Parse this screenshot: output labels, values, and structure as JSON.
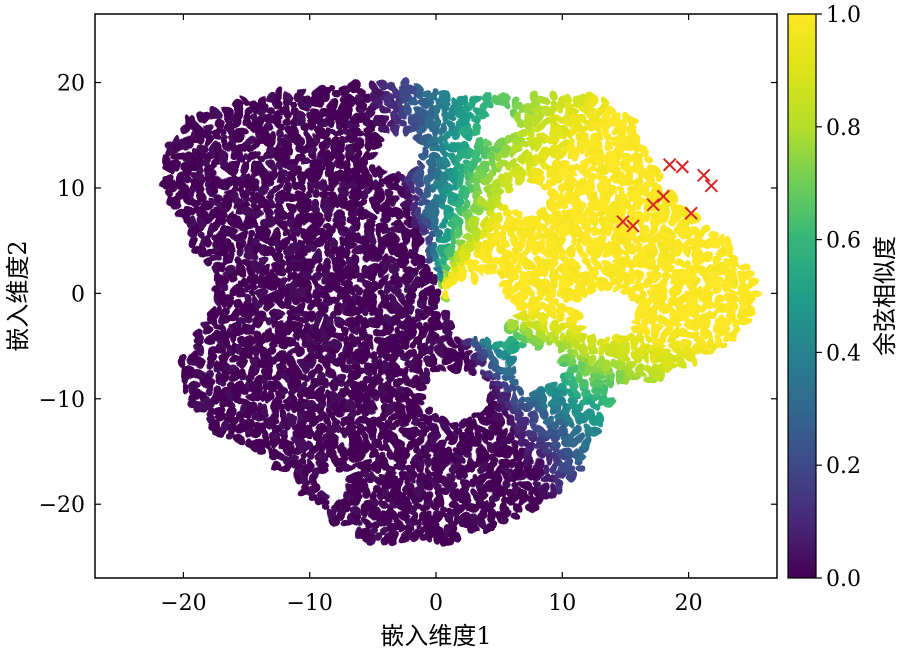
{
  "chart_data": {
    "type": "scatter",
    "xlabel": "嵌入维度1",
    "ylabel": "嵌入维度2",
    "colorbar_label": "余弦相似度",
    "xlim": [
      -27,
      27
    ],
    "ylim": [
      -27,
      26.5
    ],
    "x_ticks": [
      -20,
      -10,
      0,
      10,
      20
    ],
    "y_ticks": [
      -20,
      -10,
      0,
      10,
      20
    ],
    "x_tick_labels": [
      "−20",
      "−10",
      "0",
      "10",
      "20"
    ],
    "y_tick_labels": [
      "−20",
      "−10",
      "0",
      "10",
      "20"
    ],
    "colorbar_range": [
      0.0,
      1.0
    ],
    "colorbar_ticks": [
      0.0,
      0.2,
      0.4,
      0.6,
      0.8,
      1.0
    ],
    "colorbar_tick_labels": [
      "0.0",
      "0.2",
      "0.4",
      "0.6",
      "0.8",
      "1.0"
    ],
    "colormap": "viridis",
    "grid": false,
    "marker_color": "#d62728",
    "cross_markers": [
      {
        "x": 18.5,
        "y": 12.2
      },
      {
        "x": 19.5,
        "y": 12.0
      },
      {
        "x": 21.2,
        "y": 11.2
      },
      {
        "x": 21.8,
        "y": 10.2
      },
      {
        "x": 18.0,
        "y": 9.2
      },
      {
        "x": 17.2,
        "y": 8.4
      },
      {
        "x": 20.2,
        "y": 7.6
      },
      {
        "x": 14.8,
        "y": 6.8
      },
      {
        "x": 15.6,
        "y": 6.4
      }
    ]
  }
}
